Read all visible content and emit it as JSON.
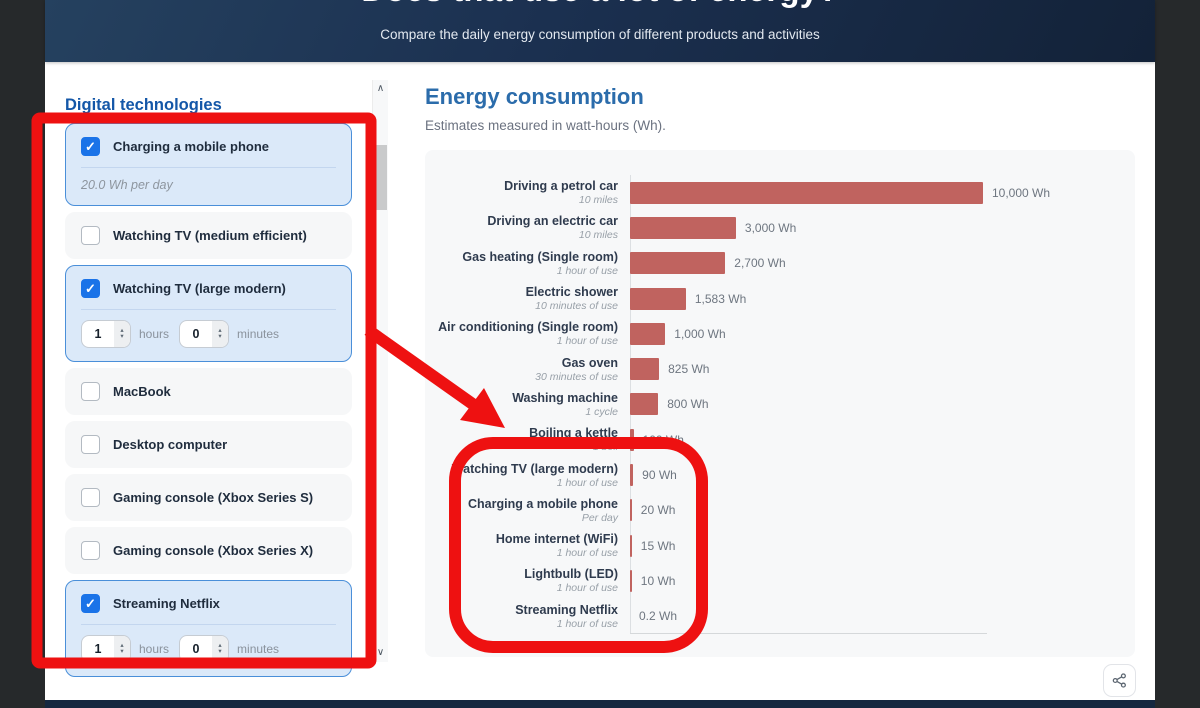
{
  "header": {
    "title": "Does that use a lot of energy?",
    "subtitle": "Compare the daily energy consumption of different products and activities"
  },
  "sidebar": {
    "heading": "Digital technologies",
    "items": [
      {
        "label": "Charging a mobile phone",
        "checked": true,
        "type": "info",
        "info": "20.0 Wh per day"
      },
      {
        "label": "Watching TV (medium efficient)",
        "checked": false,
        "type": "simple"
      },
      {
        "label": "Watching TV (large modern)",
        "checked": true,
        "type": "duration",
        "hours": "1",
        "minutes": "0",
        "hours_label": "hours",
        "minutes_label": "minutes"
      },
      {
        "label": "MacBook",
        "checked": false,
        "type": "simple"
      },
      {
        "label": "Desktop computer",
        "checked": false,
        "type": "simple"
      },
      {
        "label": "Gaming console (Xbox Series S)",
        "checked": false,
        "type": "simple"
      },
      {
        "label": "Gaming console (Xbox Series X)",
        "checked": false,
        "type": "simple"
      },
      {
        "label": "Streaming Netflix",
        "checked": true,
        "type": "duration",
        "hours": "1",
        "minutes": "0",
        "hours_label": "hours",
        "minutes_label": "minutes"
      }
    ]
  },
  "main": {
    "title": "Energy consumption",
    "subtitle": "Estimates measured in watt-hours (Wh)."
  },
  "chart_data": {
    "type": "bar",
    "orientation": "horizontal",
    "title": "Energy consumption",
    "unit": "Wh",
    "xlim": [
      0,
      10000
    ],
    "bar_color": "#c0635f",
    "categories": [
      "Driving a petrol car",
      "Driving an electric car",
      "Gas heating (Single room)",
      "Electric shower",
      "Air conditioning (Single room)",
      "Gas oven",
      "Washing machine",
      "Boiling a kettle",
      "Watching TV (large modern)",
      "Charging a mobile phone",
      "Home internet (WiFi)",
      "Lightbulb (LED)",
      "Streaming Netflix"
    ],
    "sublabels": [
      "10 miles",
      "10 miles",
      "1 hour of use",
      "10 minutes of use",
      "1 hour of use",
      "30 minutes of use",
      "1 cycle",
      "1 boil",
      "1 hour of use",
      "Per day",
      "1 hour of use",
      "1 hour of use",
      "1 hour of use"
    ],
    "values": [
      10000,
      3000,
      2700,
      1583,
      1000,
      825,
      800,
      100,
      90,
      20,
      15,
      10,
      0.2
    ],
    "value_labels": [
      "10,000 Wh",
      "3,000 Wh",
      "2,700 Wh",
      "1,583 Wh",
      "1,000 Wh",
      "825 Wh",
      "800 Wh",
      "100 Wh",
      "90 Wh",
      "20 Wh",
      "15 Wh",
      "10 Wh",
      "0.2 Wh"
    ]
  },
  "icons": {
    "share": "share-nodes-icon",
    "scroll_up": "∧",
    "scroll_down": "∨",
    "check": "✓",
    "spin_up": "▴",
    "spin_down": "▾"
  },
  "colors": {
    "annotation_red": "#ee1111",
    "bar": "#c0635f",
    "accent_blue": "#1457a8",
    "checkbox_checked": "#1a73e8",
    "selected_card_bg": "#dbe9f9",
    "selected_card_border": "#4a8fd9",
    "header_gradient_start": "#25415f",
    "header_gradient_end": "#132238"
  }
}
